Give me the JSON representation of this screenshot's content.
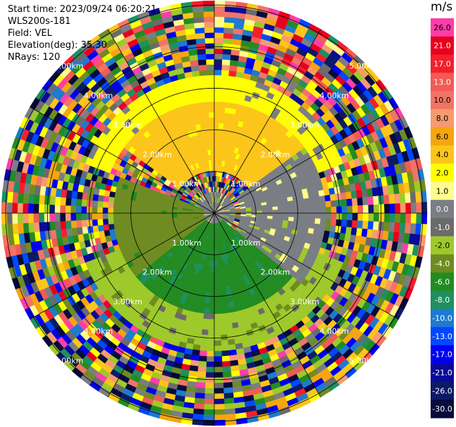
{
  "header": {
    "start_time": "Start time: 2023/09/24 06:20:21",
    "instrument": "WLS200s-181",
    "field": "Field: VEL",
    "elevation": "Elevation(deg): 35.30",
    "nrays": "NRays: 120"
  },
  "colorbar": {
    "unit": "m/s",
    "levels": [
      {
        "label": "26.0",
        "color": "#ff3da8"
      },
      {
        "label": "21.0",
        "color": "#e8001e"
      },
      {
        "label": "17.0",
        "color": "#f41f2c"
      },
      {
        "label": "13.0",
        "color": "#f25a55"
      },
      {
        "label": "10.0",
        "color": "#f27466"
      },
      {
        "label": "8.0",
        "color": "#f79a6e"
      },
      {
        "label": "6.0",
        "color": "#f5a50f"
      },
      {
        "label": "4.0",
        "color": "#fcc51a"
      },
      {
        "label": "2.0",
        "color": "#fefe00"
      },
      {
        "label": "1.0",
        "color": "#fffb8c"
      },
      {
        "label": "0.0",
        "color": "#7a7e84"
      },
      {
        "label": "-1.0",
        "color": "#6b6b6b"
      },
      {
        "label": "-2.0",
        "color": "#9ec92b"
      },
      {
        "label": "-4.0",
        "color": "#6e8c22"
      },
      {
        "label": "-6.0",
        "color": "#228b22"
      },
      {
        "label": "-8.0",
        "color": "#1e9060"
      },
      {
        "label": "-10.0",
        "color": "#1e7ad0"
      },
      {
        "label": "-13.0",
        "color": "#0048ff"
      },
      {
        "label": "-17.0",
        "color": "#0000ee"
      },
      {
        "label": "-21.0",
        "color": "#0a0a9a"
      },
      {
        "label": "-26.0",
        "color": "#0c1a66"
      },
      {
        "label": "-30.0",
        "color": "#060a3c"
      }
    ]
  },
  "chart_data": {
    "type": "heatmap",
    "subtype": "polar-ppi",
    "field": "VEL",
    "n_rays": 120,
    "max_range_km": 5.0,
    "range_ring_labels": [
      {
        "label": "1.00km",
        "km": 1
      },
      {
        "label": "2.00km",
        "km": 2
      },
      {
        "label": "3.00km",
        "km": 3
      },
      {
        "label": "4.00km",
        "km": 4
      },
      {
        "label": "5.00km",
        "km": 5
      }
    ],
    "pattern": [
      {
        "sector": "north",
        "azimuth_deg": [
          305,
          55
        ],
        "range_km": [
          1.0,
          2.6
        ],
        "velocity_mps": 4.0
      },
      {
        "sector": "north",
        "azimuth_deg": [
          290,
          70
        ],
        "range_km": [
          2.6,
          3.2
        ],
        "velocity_mps": 2.0
      },
      {
        "sector": "east",
        "azimuth_deg": [
          55,
          130
        ],
        "range_km": [
          0.6,
          2.6
        ],
        "velocity_mps": 0.0
      },
      {
        "sector": "south",
        "azimuth_deg": [
          130,
          230
        ],
        "range_km": [
          0.3,
          2.4
        ],
        "velocity_mps": -6.0
      },
      {
        "sector": "south-outer",
        "azimuth_deg": [
          110,
          250
        ],
        "range_km": [
          2.4,
          3.2
        ],
        "velocity_mps": -2.0
      },
      {
        "sector": "west",
        "azimuth_deg": [
          230,
          290
        ],
        "range_km": [
          0.3,
          2.4
        ],
        "velocity_mps": -4.0
      },
      {
        "sector": "near-range",
        "azimuth_deg": [
          0,
          360
        ],
        "range_km": [
          0.0,
          0.5
        ],
        "velocity_mps": 0.0
      },
      {
        "sector": "noise",
        "azimuth_deg": [
          0,
          360
        ],
        "range_km": [
          3.3,
          5.0
        ],
        "velocity_mps": null
      }
    ]
  }
}
